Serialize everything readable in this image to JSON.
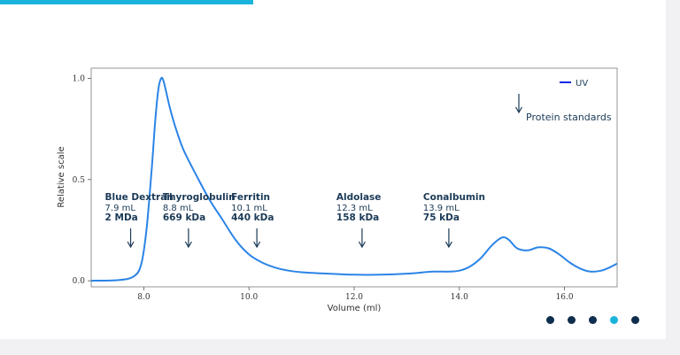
{
  "colors": {
    "accent": "#1ab3dc",
    "series": "#2b84e6",
    "text": "#1b3a57",
    "dot": "#0f2d4d",
    "dot_active": "#1ab3dc"
  },
  "pager": {
    "count": 5,
    "active_index": 3
  },
  "chart_data": {
    "type": "line",
    "title": "",
    "xlabel": "Volume (ml)",
    "ylabel": "Relative scale",
    "xlim": [
      7.0,
      17.0
    ],
    "ylim": [
      -0.03,
      1.05
    ],
    "x_ticks": [
      8.0,
      10.0,
      12.0,
      14.0,
      16.0
    ],
    "x_tick_labels": [
      "8.0",
      "10.0",
      "12.0",
      "14.0",
      "16.0"
    ],
    "y_ticks": [
      0.0,
      0.5,
      1.0
    ],
    "y_tick_labels": [
      "0.0",
      "0.5",
      "1.0"
    ],
    "grid": false,
    "legend": {
      "placement": "top-right",
      "series_label": "UV",
      "marker_label": "Protein standards"
    },
    "series": [
      {
        "name": "UV",
        "x": [
          7.0,
          7.5,
          7.8,
          7.95,
          8.05,
          8.15,
          8.22,
          8.28,
          8.33,
          8.37,
          8.42,
          8.5,
          8.6,
          8.75,
          9.0,
          9.25,
          9.5,
          9.75,
          10.0,
          10.25,
          10.5,
          10.75,
          11.0,
          11.5,
          12.0,
          12.5,
          13.0,
          13.5,
          13.8,
          14.0,
          14.2,
          14.4,
          14.6,
          14.75,
          14.85,
          14.95,
          15.1,
          15.3,
          15.5,
          15.7,
          15.9,
          16.1,
          16.3,
          16.5,
          16.7,
          16.85,
          17.0
        ],
        "y": [
          0.0,
          0.003,
          0.02,
          0.08,
          0.25,
          0.55,
          0.8,
          0.95,
          1.0,
          0.99,
          0.94,
          0.85,
          0.76,
          0.65,
          0.52,
          0.4,
          0.3,
          0.2,
          0.13,
          0.09,
          0.065,
          0.05,
          0.042,
          0.035,
          0.03,
          0.03,
          0.035,
          0.045,
          0.045,
          0.05,
          0.07,
          0.11,
          0.17,
          0.205,
          0.215,
          0.2,
          0.16,
          0.15,
          0.165,
          0.16,
          0.13,
          0.09,
          0.06,
          0.045,
          0.05,
          0.065,
          0.085
        ]
      }
    ],
    "annotations": [
      {
        "name": "Blue Dextran",
        "volume": "7.9 mL",
        "mass": "2 MDa",
        "x": 7.75
      },
      {
        "name": "Thyroglobulin",
        "volume": "8.8 mL",
        "mass": "669 kDa",
        "x": 8.85
      },
      {
        "name": "Ferritin",
        "volume": "10.1 mL",
        "mass": "440 kDa",
        "x": 10.15
      },
      {
        "name": "Aldolase",
        "volume": "12.3 mL",
        "mass": "158 kDa",
        "x": 12.15
      },
      {
        "name": "Conalbumin",
        "volume": "13.9 mL",
        "mass": "75 kDa",
        "x": 13.8
      }
    ]
  }
}
